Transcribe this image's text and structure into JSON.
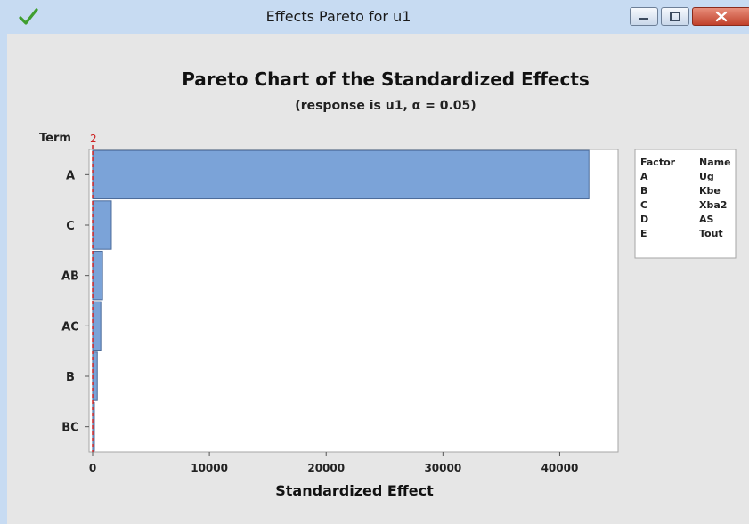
{
  "window": {
    "title": "Effects Pareto for u1",
    "icons": {
      "app": "check-icon",
      "minimize": "minimize-icon",
      "maximize": "maximize-icon",
      "close": "close-icon"
    }
  },
  "chart_data": {
    "type": "bar",
    "orientation": "horizontal",
    "title": "Pareto Chart of the Standardized Effects",
    "subtitle": "(response is u1, α = 0.05)",
    "term_label": "Term",
    "xlabel": "Standardized Effect",
    "categories": [
      "A",
      "C",
      "AB",
      "AC",
      "B",
      "BC"
    ],
    "values": [
      42500,
      1600,
      850,
      700,
      400,
      150
    ],
    "xlim": [
      0,
      45000
    ],
    "xticks": [
      0,
      10000,
      20000,
      30000,
      40000
    ],
    "xtick_labels": [
      "0",
      "10000",
      "20000",
      "30000",
      "40000"
    ],
    "reference_line": {
      "value": 2,
      "label": "2",
      "color": "#cc2222",
      "style": "dashed"
    },
    "bar_color": "#7ba3d8",
    "bar_edge_color": "#4a6a99",
    "legend": {
      "placement": "right",
      "headers": [
        "Factor",
        "Name"
      ],
      "rows": [
        [
          "A",
          "Ug"
        ],
        [
          "B",
          "Kbe"
        ],
        [
          "C",
          "Xba2"
        ],
        [
          "D",
          "AS"
        ],
        [
          "E",
          "Tout"
        ]
      ]
    }
  }
}
